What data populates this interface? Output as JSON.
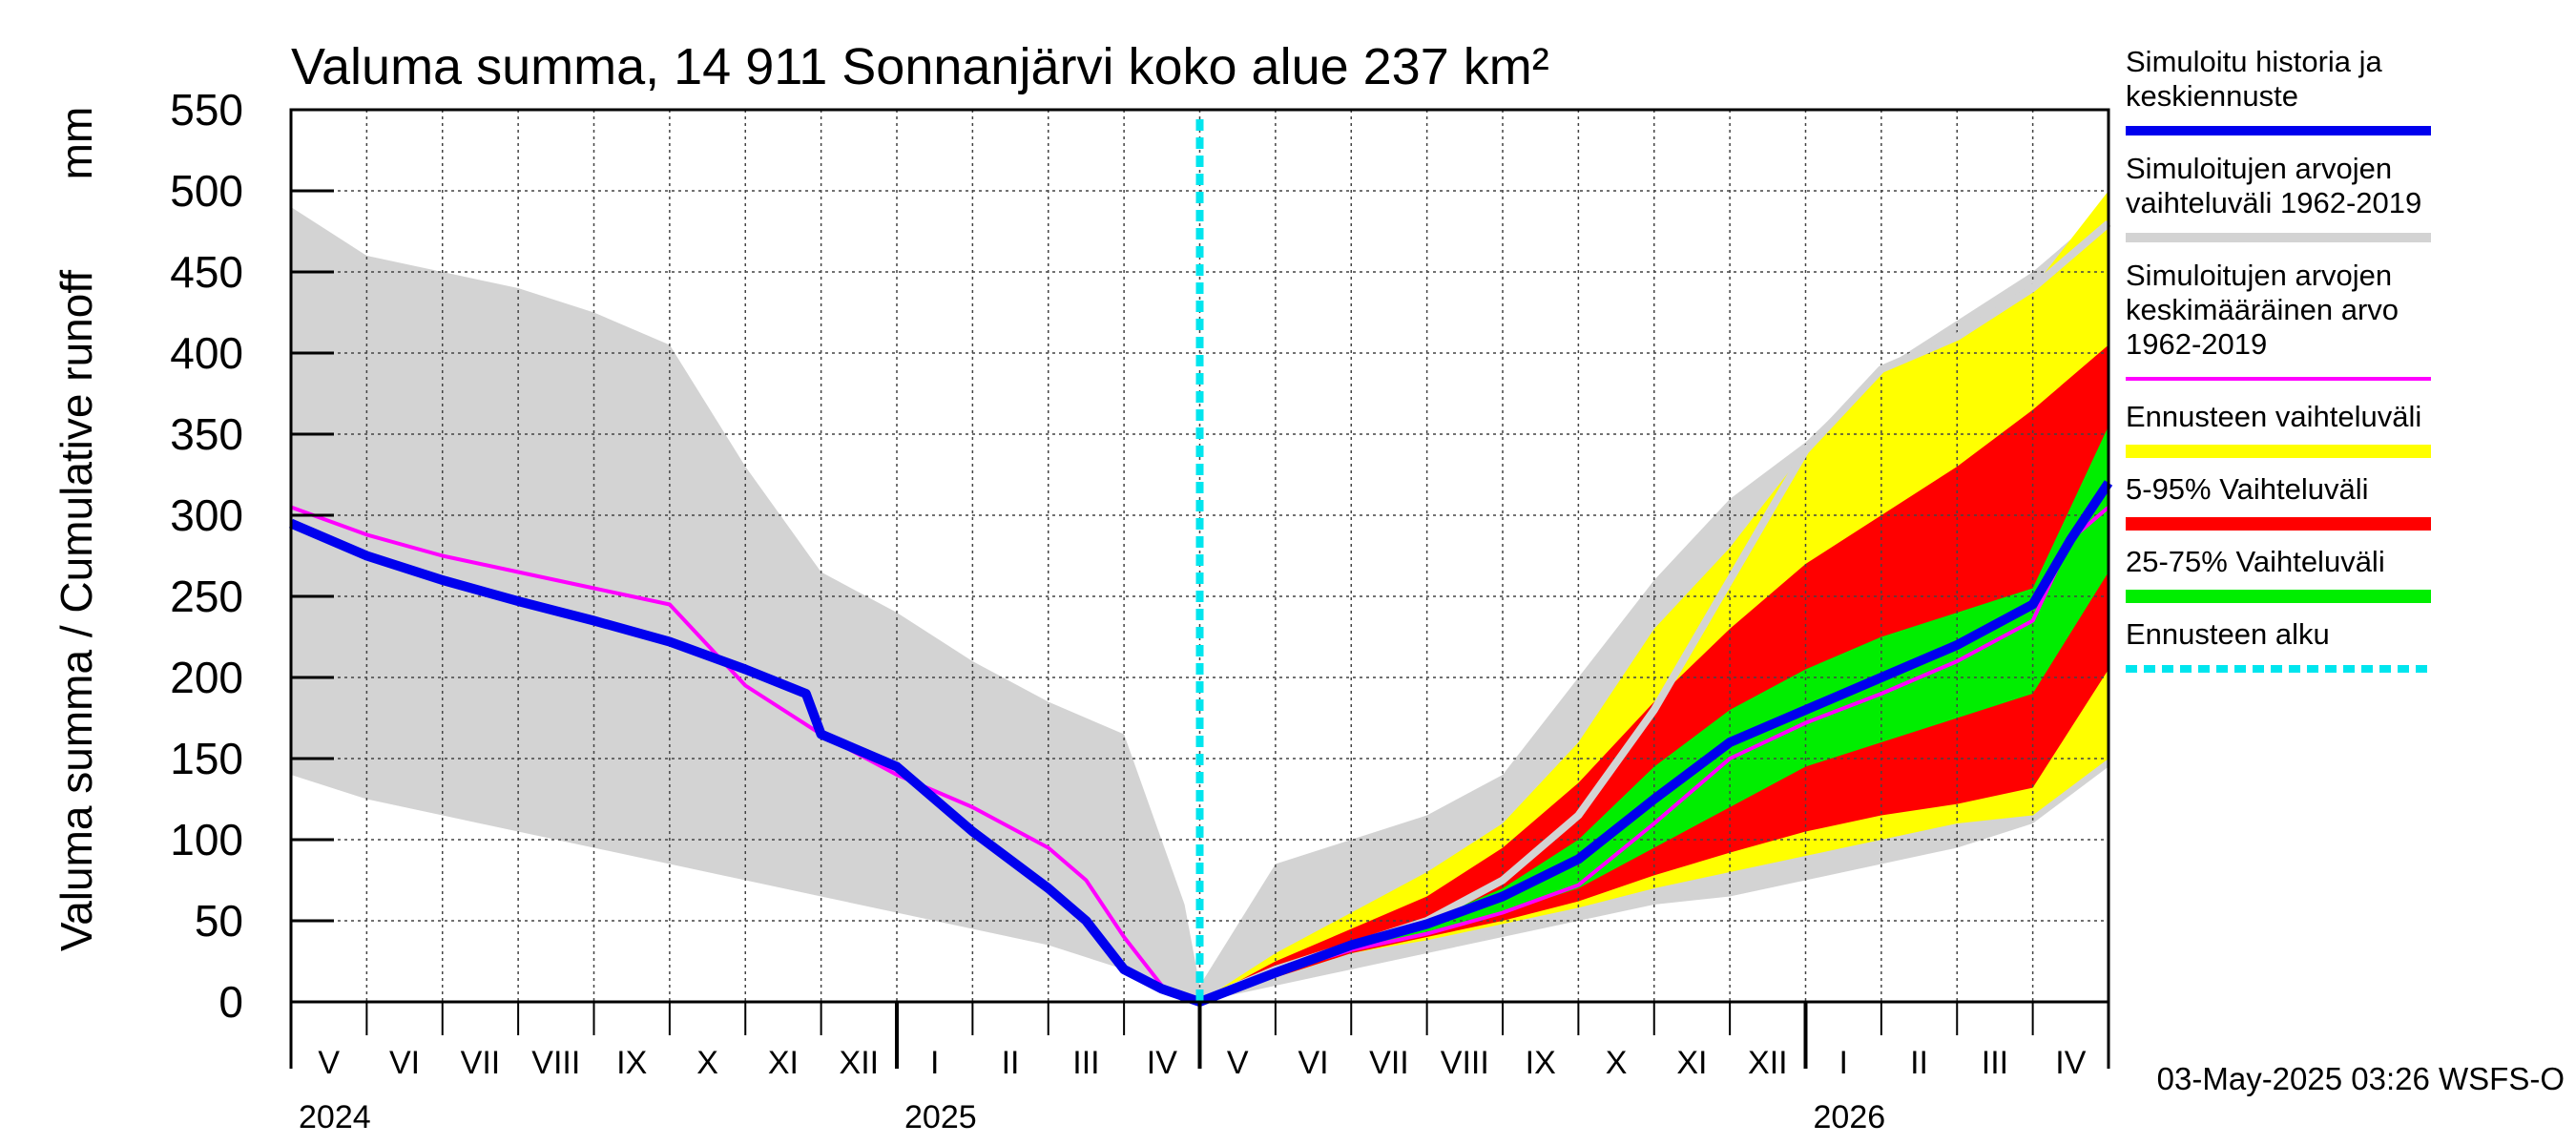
{
  "chart_data": {
    "type": "area",
    "title": "Valuma summa, 14 911 Sonnanjärvi koko alue 237 km²",
    "ylabel_left": "Valuma summa / Cumulative runoff",
    "ylabel_unit": "mm",
    "ylim": [
      0,
      550
    ],
    "yticks": [
      "0",
      "50",
      "100",
      "150",
      "200",
      "250",
      "300",
      "350",
      "400",
      "450",
      "500",
      "550"
    ],
    "xlim": [
      0,
      24
    ],
    "months": [
      "V",
      "VI",
      "VII",
      "VIII",
      "IX",
      "X",
      "XI",
      "XII",
      "I",
      "II",
      "III",
      "IV",
      "V",
      "VI",
      "VII",
      "VIII",
      "IX",
      "X",
      "XI",
      "XII",
      "I",
      "II",
      "III",
      "IV"
    ],
    "years": [
      {
        "label": "2024",
        "month_index": 0
      },
      {
        "label": "2025",
        "month_index": 8
      },
      {
        "label": "2026",
        "month_index": 20
      }
    ],
    "forecast_start_month": 12,
    "history_range": {
      "x": [
        0,
        1,
        2,
        3,
        4,
        5,
        6,
        7,
        8,
        9,
        10,
        11,
        11.8,
        12
      ],
      "upper": [
        490,
        460,
        450,
        440,
        425,
        405,
        330,
        265,
        240,
        210,
        185,
        165,
        60,
        10
      ],
      "lower": [
        140,
        125,
        115,
        105,
        95,
        85,
        75,
        65,
        55,
        45,
        35,
        20,
        5,
        0
      ]
    },
    "history_range_fc": {
      "x": [
        12,
        13,
        14,
        15,
        16,
        17,
        18,
        19,
        20,
        21,
        22,
        23,
        24
      ],
      "upper": [
        10,
        85,
        100,
        115,
        140,
        200,
        260,
        310,
        345,
        390,
        420,
        450,
        490
      ],
      "lower": [
        0,
        10,
        20,
        30,
        40,
        50,
        60,
        65,
        75,
        85,
        95,
        110,
        145
      ]
    },
    "forecast_range": {
      "x": [
        12,
        13,
        14,
        15,
        16,
        17,
        18,
        19,
        20,
        21,
        22,
        23,
        24
      ],
      "upper": [
        0,
        30,
        55,
        80,
        110,
        160,
        230,
        280,
        340,
        390,
        410,
        440,
        500
      ],
      "lower": [
        0,
        15,
        30,
        38,
        48,
        58,
        70,
        80,
        90,
        100,
        110,
        115,
        150
      ]
    },
    "p5_95": {
      "x": [
        12,
        13,
        14,
        15,
        16,
        17,
        18,
        19,
        20,
        21,
        22,
        23,
        24
      ],
      "upper": [
        0,
        25,
        45,
        65,
        95,
        135,
        185,
        230,
        270,
        300,
        330,
        365,
        405
      ],
      "lower": [
        0,
        15,
        30,
        40,
        50,
        62,
        78,
        92,
        105,
        115,
        122,
        132,
        205
      ]
    },
    "p25_75": {
      "x": [
        12,
        13,
        14,
        15,
        16,
        17,
        18,
        19,
        20,
        21,
        22,
        23,
        24
      ],
      "upper": [
        0,
        20,
        35,
        50,
        70,
        100,
        145,
        180,
        205,
        225,
        240,
        255,
        355
      ],
      "lower": [
        0,
        17,
        32,
        42,
        55,
        70,
        95,
        120,
        145,
        160,
        175,
        190,
        265
      ]
    },
    "series": [
      {
        "name": "Simuloitu historia ja keskiennuste",
        "x": [
          0,
          1,
          2,
          3,
          4,
          5,
          6,
          6.8,
          7,
          8,
          9,
          10,
          10.5,
          11,
          11.5,
          12,
          13,
          14,
          15,
          16,
          17,
          18,
          19,
          20,
          21,
          22,
          23,
          23.5,
          24
        ],
        "values": [
          295,
          275,
          260,
          247,
          235,
          222,
          205,
          190,
          165,
          145,
          105,
          70,
          50,
          20,
          8,
          0,
          18,
          35,
          48,
          65,
          88,
          125,
          160,
          180,
          200,
          220,
          245,
          285,
          320
        ]
      },
      {
        "name": "Simuloitujen arvojen vaihteluväli 1962-2019 (upper)",
        "x": [
          12,
          13,
          14,
          15,
          16,
          17,
          18,
          19,
          20,
          21,
          22,
          23,
          24
        ],
        "values": [
          0,
          20,
          35,
          50,
          75,
          115,
          180,
          260,
          340,
          390,
          410,
          440,
          480
        ]
      },
      {
        "name": "Simuloitujen arvojen keskimääräinen arvo 1962-2019",
        "x": [
          0,
          1,
          2,
          3,
          4,
          5,
          5.5,
          6,
          7,
          8,
          9,
          10,
          10.5,
          11,
          11.5,
          12,
          13,
          14,
          15,
          16,
          17,
          18,
          19,
          20,
          21,
          22,
          23,
          23.5,
          24
        ],
        "values": [
          305,
          288,
          275,
          265,
          255,
          245,
          220,
          195,
          165,
          140,
          120,
          95,
          75,
          40,
          10,
          0,
          18,
          32,
          42,
          55,
          72,
          110,
          150,
          172,
          190,
          210,
          235,
          285,
          305
        ]
      }
    ],
    "legend": [
      {
        "label": "Simuloitu historia ja\nkeskiennuste",
        "color": "#0000ee",
        "style": "line"
      },
      {
        "label": "Simuloitujen arvojen\nvaihteluväli 1962-2019",
        "color": "#d3d3d3",
        "style": "line"
      },
      {
        "label": "Simuloitujen arvojen\nkeskimääräinen arvo\n   1962-2019",
        "color": "#ff00ff",
        "style": "thin"
      },
      {
        "label": "Ennusteen vaihteluväli",
        "color": "#ffff00",
        "style": "band"
      },
      {
        "label": "5-95% Vaihteluväli",
        "color": "#ff0000",
        "style": "band"
      },
      {
        "label": "25-75% Vaihteluväli",
        "color": "#00ee00",
        "style": "band"
      },
      {
        "label": "Ennusteen alku",
        "color": "#00e5ee",
        "style": "dashed"
      }
    ],
    "footer": "03-May-2025 03:26 WSFS-O"
  }
}
